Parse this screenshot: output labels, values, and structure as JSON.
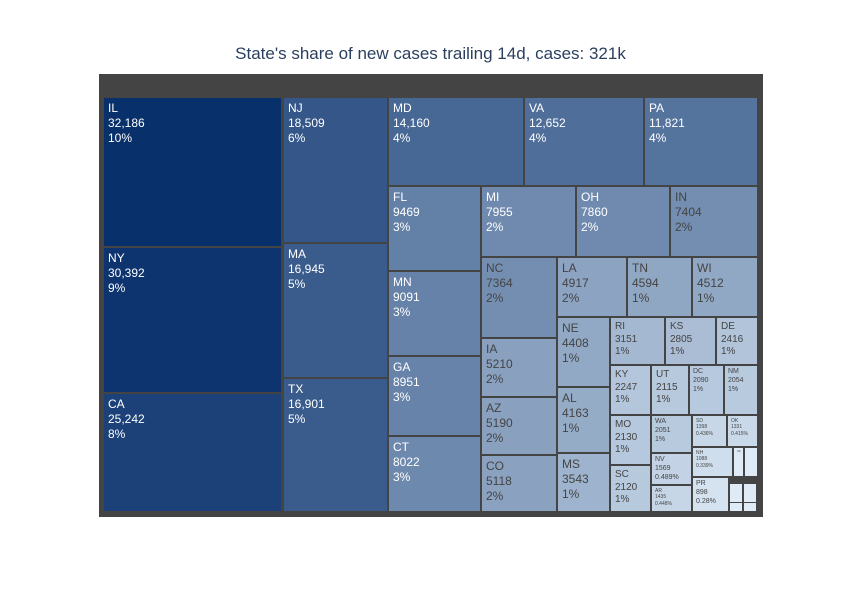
{
  "title": "State's share of new cases trailing 14d, cases: 321k",
  "colors": {
    "min": "#deebf7",
    "max": "#08306b",
    "border": "#444444",
    "dark_text": "#ffffff",
    "light_text": "#444444"
  },
  "chart_data": {
    "type": "treemap",
    "title": "State's share of new cases trailing 14d, cases: 321k",
    "total_label": "321k",
    "items": [
      {
        "label": "IL",
        "value": 32186,
        "value_text": "32,186",
        "pct": "10%"
      },
      {
        "label": "NY",
        "value": 30392,
        "value_text": "30,392",
        "pct": "9%"
      },
      {
        "label": "CA",
        "value": 25242,
        "value_text": "25,242",
        "pct": "8%"
      },
      {
        "label": "NJ",
        "value": 18509,
        "value_text": "18,509",
        "pct": "6%"
      },
      {
        "label": "MA",
        "value": 16945,
        "value_text": "16,945",
        "pct": "5%"
      },
      {
        "label": "TX",
        "value": 16901,
        "value_text": "16,901",
        "pct": "5%"
      },
      {
        "label": "MD",
        "value": 14160,
        "value_text": "14,160",
        "pct": "4%"
      },
      {
        "label": "VA",
        "value": 12652,
        "value_text": "12,652",
        "pct": "4%"
      },
      {
        "label": "PA",
        "value": 11821,
        "value_text": "11,821",
        "pct": "4%"
      },
      {
        "label": "FL",
        "value": 9469,
        "value_text": "9469",
        "pct": "3%"
      },
      {
        "label": "MI",
        "value": 7955,
        "value_text": "7955",
        "pct": "2%"
      },
      {
        "label": "OH",
        "value": 7860,
        "value_text": "7860",
        "pct": "2%"
      },
      {
        "label": "IN",
        "value": 7404,
        "value_text": "7404",
        "pct": "2%"
      },
      {
        "label": "MN",
        "value": 9091,
        "value_text": "9091",
        "pct": "3%"
      },
      {
        "label": "GA",
        "value": 8951,
        "value_text": "8951",
        "pct": "3%"
      },
      {
        "label": "CT",
        "value": 8022,
        "value_text": "8022",
        "pct": "3%"
      },
      {
        "label": "NC",
        "value": 7364,
        "value_text": "7364",
        "pct": "2%"
      },
      {
        "label": "IA",
        "value": 5210,
        "value_text": "5210",
        "pct": "2%"
      },
      {
        "label": "AZ",
        "value": 5190,
        "value_text": "5190",
        "pct": "2%"
      },
      {
        "label": "CO",
        "value": 5118,
        "value_text": "5118",
        "pct": "2%"
      },
      {
        "label": "LA",
        "value": 4917,
        "value_text": "4917",
        "pct": "2%"
      },
      {
        "label": "TN",
        "value": 4594,
        "value_text": "4594",
        "pct": "1%"
      },
      {
        "label": "WI",
        "value": 4512,
        "value_text": "4512",
        "pct": "1%"
      },
      {
        "label": "NE",
        "value": 4408,
        "value_text": "4408",
        "pct": "1%"
      },
      {
        "label": "AL",
        "value": 4163,
        "value_text": "4163",
        "pct": "1%"
      },
      {
        "label": "MS",
        "value": 3543,
        "value_text": "3543",
        "pct": "1%"
      },
      {
        "label": "RI",
        "value": 3151,
        "value_text": "3151",
        "pct": "1%"
      },
      {
        "label": "KS",
        "value": 2805,
        "value_text": "2805",
        "pct": "1%"
      },
      {
        "label": "DE",
        "value": 2416,
        "value_text": "2416",
        "pct": "1%"
      },
      {
        "label": "KY",
        "value": 2247,
        "value_text": "2247",
        "pct": "1%"
      },
      {
        "label": "UT",
        "value": 2115,
        "value_text": "2115",
        "pct": "1%"
      },
      {
        "label": "DC",
        "value": 2090,
        "value_text": "2090",
        "pct": "1%"
      },
      {
        "label": "NM",
        "value": 2054,
        "value_text": "2054",
        "pct": "1%"
      },
      {
        "label": "MO",
        "value": 2130,
        "value_text": "2130",
        "pct": "1%"
      },
      {
        "label": "WA",
        "value": 2051,
        "value_text": "2051",
        "pct": "1%"
      },
      {
        "label": "SD",
        "value": 1398,
        "value_text": "1398",
        "pct": "0.436%"
      },
      {
        "label": "OK",
        "value": 1331,
        "value_text": "1331",
        "pct": "0.415%"
      },
      {
        "label": "SC",
        "value": 2120,
        "value_text": "2120",
        "pct": "1%"
      },
      {
        "label": "NV",
        "value": 1569,
        "value_text": "1569",
        "pct": "0.489%"
      },
      {
        "label": "NH",
        "value": 1088,
        "value_text": "1088",
        "pct": "0.339%"
      },
      {
        "label": "VA",
        "value": 0,
        "value_text": "",
        "pct": ""
      },
      {
        "label": "",
        "value": 0,
        "value_text": "",
        "pct": ""
      },
      {
        "label": "AR",
        "value": 1435,
        "value_text": "1435",
        "pct": "0.448%"
      },
      {
        "label": "PR",
        "value": 898,
        "value_text": "898",
        "pct": "0.28%"
      },
      {
        "label": "",
        "value": 0,
        "value_text": "",
        "pct": ""
      },
      {
        "label": "",
        "value": 0,
        "value_text": "",
        "pct": ""
      },
      {
        "label": "",
        "value": 0,
        "value_text": "",
        "pct": ""
      },
      {
        "label": "",
        "value": 0,
        "value_text": "",
        "pct": ""
      }
    ]
  }
}
